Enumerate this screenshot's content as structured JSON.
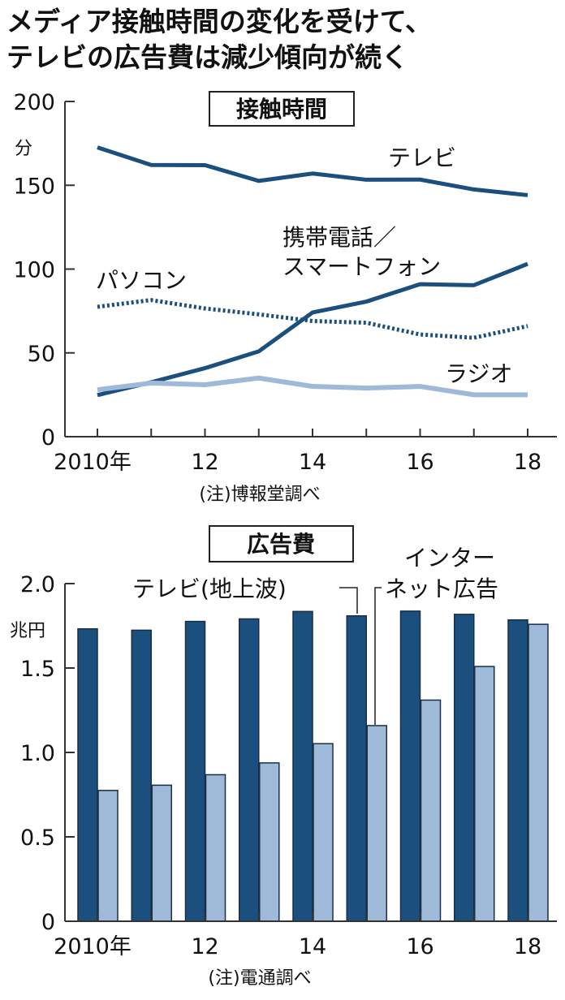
{
  "title": [
    "メディア接触時間の変化を受けて、",
    "テレビの広告費は減少傾向が続く"
  ],
  "colors": {
    "dark": "#1b4f7e",
    "light": "#9fbad9",
    "axis": "#333333"
  },
  "chart_data": [
    {
      "type": "line",
      "title": "接触時間",
      "ylabel": "分",
      "ylim": [
        0,
        200
      ],
      "yticks": [
        "0",
        "50",
        "100",
        "150",
        "200"
      ],
      "x": [
        2010,
        2011,
        2012,
        2013,
        2014,
        2015,
        2016,
        2017,
        2018
      ],
      "xtick_labels": [
        "2010年",
        "12",
        "14",
        "16",
        "18"
      ],
      "note": "(注)博報堂調べ",
      "series": [
        {
          "name": "テレビ",
          "style": "solid-dark",
          "values": [
            172.6,
            162.1,
            162.0,
            152.6,
            157.0,
            153.3,
            153.4,
            147.5,
            144.1
          ]
        },
        {
          "name": "携帯電話／スマートフォン",
          "name_lines": [
            "携帯電話／",
            "スマートフォン"
          ],
          "style": "solid-dark",
          "values": [
            24.8,
            32.5,
            40.9,
            50.9,
            74.1,
            80.6,
            91.0,
            90.4,
            103.1
          ]
        },
        {
          "name": "パソコン",
          "style": "dotted-dark",
          "values": [
            77.5,
            81.5,
            76.5,
            73.0,
            69.0,
            68.0,
            61.0,
            59.0,
            66.0
          ]
        },
        {
          "name": "ラジオ",
          "style": "solid-light",
          "values": [
            28.0,
            32.0,
            31.0,
            35.0,
            30.0,
            29.0,
            30.0,
            25.0,
            25.0
          ]
        }
      ]
    },
    {
      "type": "bar",
      "title": "広告費",
      "ylabel": "兆円",
      "ylim": [
        0,
        2.0
      ],
      "yticks": [
        "0",
        "0.5",
        "1.0",
        "1.5",
        "2.0"
      ],
      "x": [
        2010,
        2011,
        2012,
        2013,
        2014,
        2015,
        2016,
        2017,
        2018
      ],
      "xtick_labels": [
        "2010年",
        "12",
        "14",
        "16",
        "18"
      ],
      "note": "(注)電通調べ",
      "series": [
        {
          "name": "テレビ(地上波)",
          "color": "dark",
          "values": [
            1.732,
            1.724,
            1.776,
            1.791,
            1.835,
            1.809,
            1.837,
            1.818,
            1.785
          ]
        },
        {
          "name": "インターネット広告",
          "name_lines": [
            "インター",
            "ネット広告"
          ],
          "color": "light",
          "values": [
            0.775,
            0.806,
            0.868,
            0.938,
            1.052,
            1.159,
            1.31,
            1.509,
            1.759
          ]
        }
      ]
    }
  ]
}
